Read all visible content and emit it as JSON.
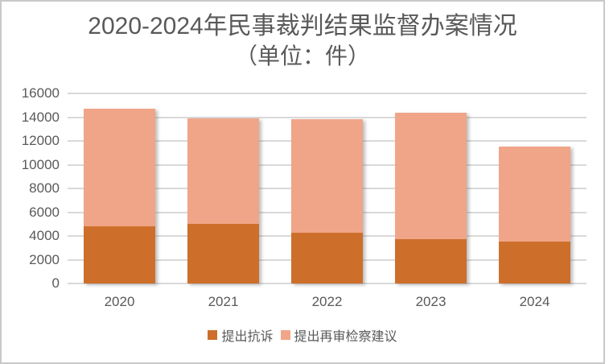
{
  "title": {
    "line1": "2020-2024年民事裁判结果监督办案情况",
    "line2": "（单位：件）"
  },
  "colors": {
    "series1": "#cd6f2b",
    "series2": "#f0a588",
    "text": "#595959",
    "gridline": "#d9d9d9",
    "border": "#c9c9c9",
    "background": "#ffffff"
  },
  "chart_data": {
    "type": "bar",
    "stacked": true,
    "title": "2020-2024年民事裁判结果监督办案情况（单位：件）",
    "categories": [
      "2020",
      "2021",
      "2022",
      "2023",
      "2024"
    ],
    "series": [
      {
        "name": "提出抗诉",
        "color": "#cd6f2b",
        "values": [
          4800,
          5000,
          4300,
          3700,
          3550
        ]
      },
      {
        "name": "提出再审检察建议",
        "color": "#f0a588",
        "values": [
          9900,
          8900,
          9550,
          10650,
          8000
        ]
      }
    ],
    "totals": [
      14700,
      13900,
      13850,
      14350,
      11550
    ],
    "xlabel": "",
    "ylabel": "",
    "ylim": [
      0,
      16000
    ],
    "ytick_step": 2000,
    "yticks": [
      0,
      2000,
      4000,
      6000,
      8000,
      10000,
      12000,
      14000,
      16000
    ],
    "grid": true,
    "legend_position": "bottom"
  }
}
